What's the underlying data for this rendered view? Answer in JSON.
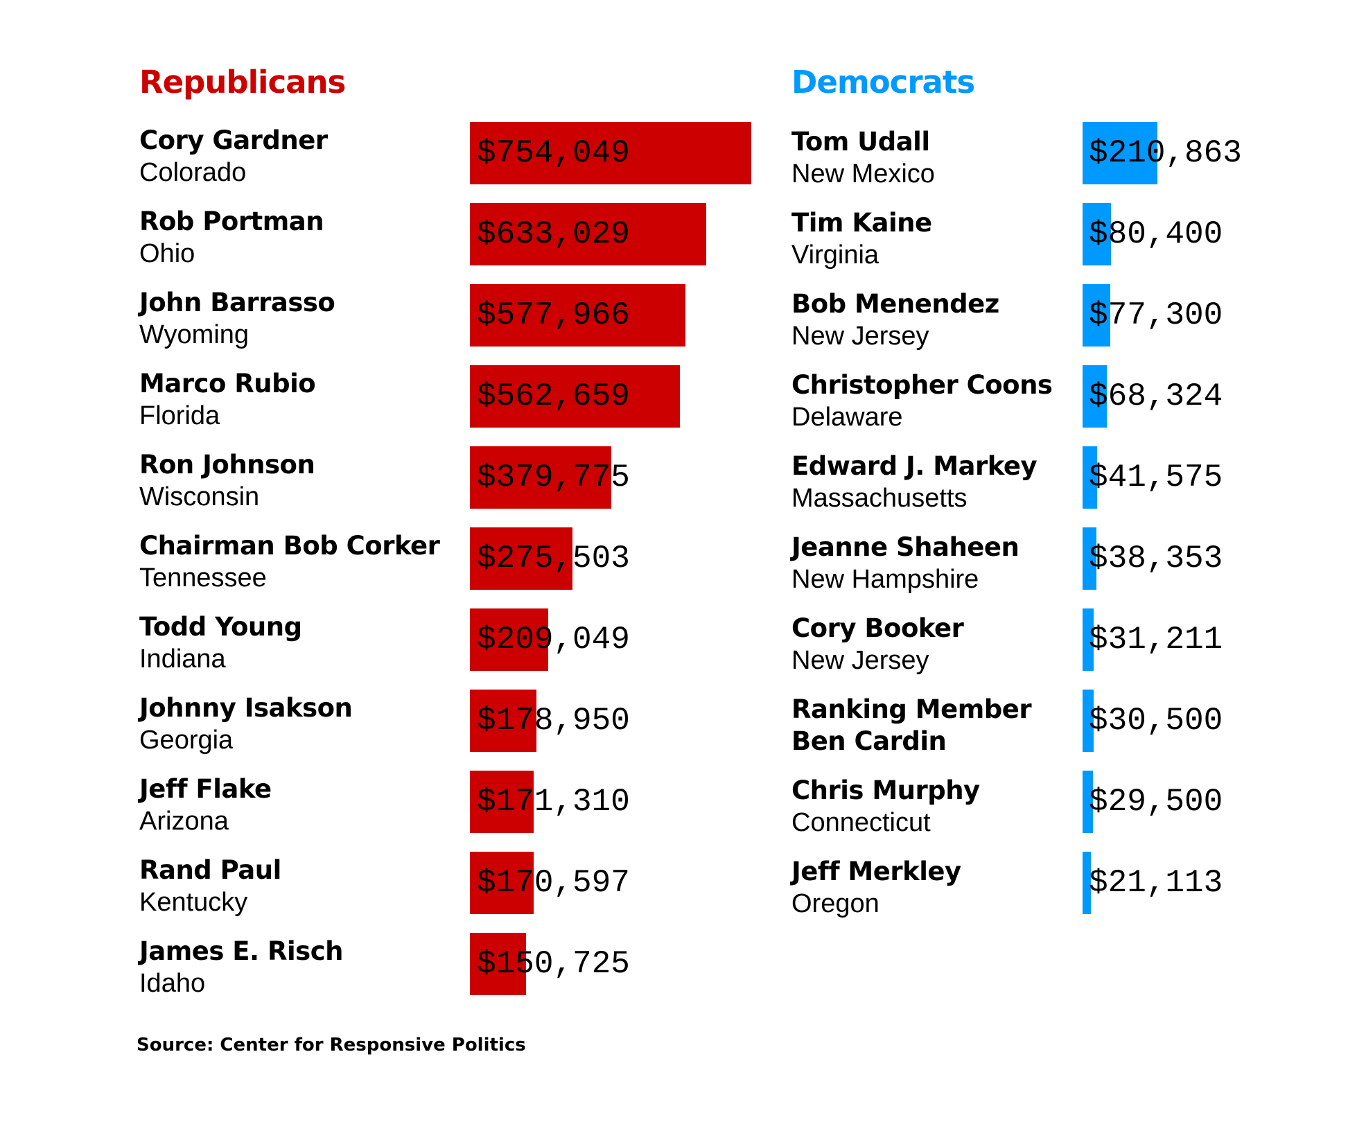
{
  "colors": {
    "republican": "#cc0000",
    "democrat": "#0099ff"
  },
  "chart_data": [
    {
      "type": "bar",
      "title": "Republicans",
      "categories": [
        "Cory Gardner",
        "Rob Portman",
        "John Barrasso",
        "Marco Rubio",
        "Ron Johnson",
        "Chairman Bob Corker",
        "Todd Young",
        "Johnny Isakson",
        "Jeff Flake",
        "Rand Paul",
        "James E. Risch"
      ],
      "states": [
        "Colorado",
        "Ohio",
        "Wyoming",
        "Florida",
        "Wisconsin",
        "Tennessee",
        "Indiana",
        "Georgia",
        "Arizona",
        "Kentucky",
        "Idaho"
      ],
      "values": [
        754049,
        633029,
        577966,
        562659,
        379775,
        275503,
        209049,
        178950,
        171310,
        170597,
        150725
      ],
      "labels": [
        "$754,049",
        "$633,029",
        "$577,966",
        "$562,659",
        "$379,775",
        "$275,503",
        "$209,049",
        "$178,950",
        "$171,310",
        "$170,597",
        "$150,725"
      ],
      "color": "#cc0000"
    },
    {
      "type": "bar",
      "title": "Democrats",
      "categories": [
        "Tom Udall",
        "Tim Kaine",
        "Bob Menendez",
        "Christopher Coons",
        "Edward J. Markey",
        "Jeanne Shaheen",
        "Cory Booker",
        "Ranking Member Ben Cardin",
        "Chris Murphy",
        "Jeff Merkley"
      ],
      "name_lines": [
        [
          "Tom Udall"
        ],
        [
          "Tim Kaine"
        ],
        [
          "Bob Menendez"
        ],
        [
          "Christopher Coons"
        ],
        [
          "Edward J. Markey"
        ],
        [
          "Jeanne Shaheen"
        ],
        [
          "Cory Booker"
        ],
        [
          "Ranking Member",
          "Ben Cardin"
        ],
        [
          "Chris Murphy"
        ],
        [
          "Jeff Merkley"
        ]
      ],
      "states": [
        "New Mexico",
        "Virginia",
        "New Jersey",
        "Delaware",
        "Massachusetts",
        "New Hampshire",
        "New Jersey",
        "",
        "Connecticut",
        "Oregon"
      ],
      "values": [
        210863,
        80400,
        77300,
        68324,
        41575,
        38353,
        31211,
        30500,
        29500,
        21113
      ],
      "labels": [
        "$210,863",
        "$80,400",
        "$77,300",
        "$68,324",
        "$41,575",
        "$38,353",
        "$31,211",
        "$30,500",
        "$29,500",
        "$21,113"
      ],
      "color": "#0099ff"
    }
  ],
  "source": "Source:  Center for Responsive Politics"
}
